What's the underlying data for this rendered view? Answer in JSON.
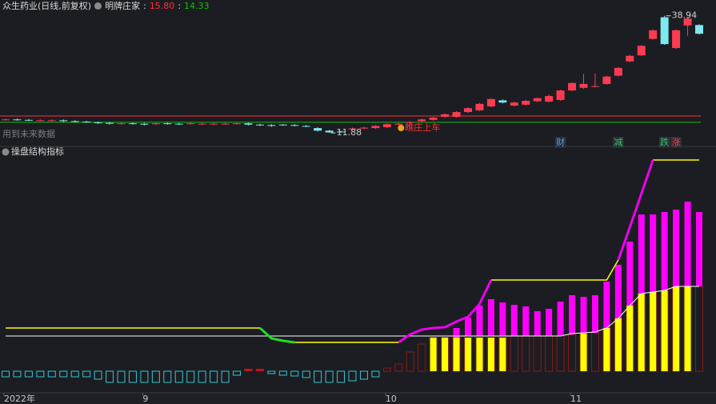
{
  "chart_data": [
    {
      "type": "candlestick",
      "title": "众生药业(日线,前复权)",
      "indicator": "明牌庄家",
      "separator": ":",
      "levels": [
        {
          "value": 15.8,
          "label": "15.80",
          "color": "#ff3030"
        },
        {
          "value": 14.33,
          "label": "14.33",
          "color": "#10c010"
        }
      ],
      "open": [
        14.9,
        15.0,
        14.9,
        14.8,
        14.7,
        14.8,
        14.6,
        14.5,
        14.3,
        14.2,
        14.0,
        14.1,
        14.0,
        13.9,
        14.1,
        14.0,
        14.0,
        13.9,
        13.9,
        14.0,
        14.0,
        14.1,
        13.8,
        13.7,
        13.8,
        13.7,
        13.5,
        13.0,
        12.4,
        12.2,
        12.7,
        12.9,
        13.0,
        13.2,
        13.8,
        14.2,
        14.6,
        14.9,
        15.6,
        15.6,
        16.7,
        17.1,
        18.0,
        19.4,
        18.2,
        18.4,
        19.2,
        19.1,
        19.5,
        21.7,
        22.3,
        22.6,
        23.2,
        25.1,
        28.4,
        29.8,
        33.6,
        38.6,
        31.5,
        36.7,
        36.8
      ],
      "high": [
        15.2,
        15.2,
        15.1,
        15.0,
        15.0,
        15.0,
        14.8,
        14.7,
        14.5,
        14.4,
        14.3,
        14.3,
        14.2,
        14.3,
        14.3,
        14.2,
        14.3,
        14.2,
        14.2,
        14.2,
        14.3,
        14.3,
        14.0,
        13.9,
        13.9,
        13.9,
        13.7,
        13.2,
        12.6,
        12.4,
        13.1,
        13.3,
        13.7,
        14.1,
        14.2,
        14.6,
        15.2,
        15.6,
        16.4,
        16.9,
        17.8,
        18.8,
        19.9,
        19.6,
        19.1,
        19.5,
        20.1,
        20.8,
        21.9,
        23.6,
        25.5,
        25.6,
        25.1,
        27.1,
        29.9,
        32.2,
        35.8,
        38.94,
        35.8,
        38.6,
        37.0
      ],
      "low": [
        14.7,
        14.7,
        14.6,
        14.6,
        14.5,
        14.4,
        14.3,
        14.2,
        14.0,
        13.8,
        13.8,
        13.8,
        13.6,
        13.7,
        13.8,
        13.7,
        13.8,
        13.7,
        13.7,
        13.8,
        13.8,
        13.6,
        13.5,
        13.3,
        13.5,
        13.4,
        13.2,
        12.2,
        11.88,
        11.9,
        12.5,
        12.7,
        12.8,
        13.0,
        13.6,
        14.0,
        14.4,
        14.7,
        15.4,
        15.4,
        16.5,
        16.9,
        17.8,
        18.7,
        18.0,
        18.2,
        19.0,
        18.9,
        19.3,
        21.5,
        22.1,
        22.4,
        23.0,
        24.9,
        28.2,
        29.6,
        33.4,
        32.2,
        31.3,
        34.3,
        34.6
      ],
      "close": [
        15.0,
        14.9,
        14.8,
        14.8,
        14.8,
        14.6,
        14.5,
        14.4,
        14.2,
        14.0,
        14.1,
        14.0,
        13.8,
        14.1,
        14.0,
        13.9,
        14.1,
        14.0,
        14.0,
        14.0,
        14.1,
        13.8,
        13.7,
        13.5,
        13.7,
        13.6,
        13.4,
        12.4,
        12.0,
        12.1,
        12.9,
        13.1,
        13.5,
        13.9,
        14.0,
        14.4,
        15.0,
        15.4,
        16.2,
        16.7,
        17.6,
        18.6,
        19.7,
        18.9,
        18.9,
        19.3,
        19.9,
        20.4,
        21.7,
        23.4,
        23.2,
        22.7,
        24.9,
        26.9,
        29.7,
        32.0,
        35.6,
        32.4,
        35.6,
        38.3,
        34.8
      ],
      "up_color": "#ff3b52",
      "down_color": "#7fe8f0",
      "ylim": [
        10.8,
        40.0
      ],
      "note": "用到未来数据",
      "annotation": {
        "index": 34,
        "text": "瞧庄上车"
      },
      "markers": [
        {
          "index": 48,
          "text": "财",
          "color": "#4aa3ff"
        },
        {
          "index": 53,
          "text": "减",
          "color": "#33cc66"
        },
        {
          "index": 57,
          "text": "跌",
          "color": "#33cc66"
        },
        {
          "index": 58,
          "text": "涨",
          "color": "#ff4444"
        }
      ]
    },
    {
      "type": "bar-line",
      "title": "操盘结构指标",
      "categories": [
        "2022年",
        null,
        null,
        null,
        null,
        null,
        null,
        null,
        null,
        null,
        null,
        null,
        "9",
        null,
        null,
        null,
        null,
        null,
        null,
        null,
        null,
        null,
        null,
        null,
        null,
        null,
        null,
        null,
        null,
        null,
        null,
        null,
        null,
        "10",
        null,
        null,
        null,
        null,
        null,
        null,
        null,
        null,
        null,
        null,
        null,
        null,
        null,
        null,
        null,
        "11",
        null,
        null,
        null,
        null,
        null,
        null,
        null,
        null,
        null,
        null,
        null
      ],
      "ylim": [
        -26,
        274
      ],
      "histogram": {
        "up_color": "#cc1111",
        "down_color": "#35c5d0",
        "values": [
          -7,
          -7,
          -7,
          -7,
          -7,
          -7,
          -7,
          -7,
          -10,
          -14,
          -14,
          -14,
          -14,
          -14,
          -14,
          -14,
          -14,
          -14,
          -14,
          -14,
          -5,
          3,
          3,
          -3,
          -5,
          -6,
          -8,
          -14,
          -14,
          -14,
          -12,
          -10,
          -7,
          null,
          null,
          null,
          null,
          null,
          null,
          null,
          null,
          null,
          null,
          null,
          null,
          null,
          null,
          null,
          null,
          null,
          null,
          null,
          null,
          null,
          null,
          null,
          null,
          null,
          null,
          null,
          null
        ]
      },
      "bars": [
        {
          "color": "#8b1a1a",
          "fill": false,
          "values": [
            null,
            null,
            null,
            null,
            null,
            null,
            null,
            null,
            null,
            null,
            null,
            null,
            null,
            null,
            null,
            null,
            null,
            null,
            null,
            null,
            null,
            null,
            null,
            null,
            null,
            null,
            null,
            null,
            null,
            null,
            null,
            null,
            null,
            4,
            9,
            24,
            34,
            42,
            42,
            42,
            44,
            44,
            44,
            44,
            44,
            44,
            44,
            44,
            44,
            46,
            47,
            48,
            54,
            66,
            82,
            97,
            99,
            101,
            106,
            106,
            106
          ]
        },
        {
          "color": "#ffff00",
          "fill": true,
          "values": [
            null,
            null,
            null,
            null,
            null,
            null,
            null,
            null,
            null,
            null,
            null,
            null,
            null,
            null,
            null,
            null,
            null,
            null,
            null,
            null,
            null,
            null,
            null,
            null,
            null,
            null,
            null,
            null,
            null,
            null,
            null,
            null,
            null,
            null,
            null,
            null,
            null,
            42,
            42,
            42,
            42,
            42,
            42,
            42,
            null,
            null,
            null,
            null,
            null,
            null,
            48,
            null,
            54,
            66,
            82,
            97,
            99,
            101,
            106,
            106,
            null
          ]
        },
        {
          "color": "#ff00ff",
          "fill": true,
          "stack_on": 0,
          "values": [
            null,
            null,
            null,
            null,
            null,
            null,
            null,
            null,
            null,
            null,
            null,
            null,
            null,
            null,
            null,
            null,
            null,
            null,
            null,
            null,
            null,
            null,
            null,
            null,
            null,
            null,
            null,
            null,
            null,
            null,
            null,
            null,
            null,
            null,
            null,
            null,
            null,
            null,
            null,
            12,
            23,
            38,
            46,
            42,
            39,
            37,
            31,
            34,
            43,
            49,
            46,
            47,
            58,
            67,
            80,
            99,
            97,
            98,
            96,
            106,
            93
          ]
        }
      ],
      "lines": [
        {
          "color": "#ffffff",
          "width": 1,
          "values": [
            44,
            44,
            44,
            44,
            44,
            44,
            44,
            44,
            44,
            44,
            44,
            44,
            44,
            44,
            44,
            44,
            44,
            44,
            44,
            44,
            44,
            44,
            44,
            44,
            44,
            44,
            44,
            44,
            44,
            44,
            44,
            44,
            44,
            44,
            44,
            44,
            44,
            44,
            44,
            44,
            44,
            44,
            44,
            44,
            44,
            44,
            44,
            44,
            44,
            47,
            48,
            49,
            54,
            66,
            82,
            97,
            99,
            101,
            106,
            106,
            106
          ]
        },
        {
          "color": "#ffff00",
          "width": 1.5,
          "values": [
            54,
            54,
            54,
            54,
            54,
            54,
            54,
            54,
            54,
            54,
            54,
            54,
            54,
            54,
            54,
            54,
            54,
            54,
            54,
            54,
            54,
            54,
            54,
            null,
            null,
            36,
            36,
            36,
            36,
            36,
            36,
            36,
            36,
            36,
            36,
            null,
            null,
            null,
            null,
            null,
            null,
            null,
            114,
            114,
            114,
            114,
            114,
            114,
            114,
            114,
            114,
            114,
            114,
            139,
            null,
            null,
            264,
            264,
            264,
            264,
            264
          ]
        },
        {
          "color": "#22dd22",
          "width": 3,
          "values": [
            null,
            null,
            null,
            null,
            null,
            null,
            null,
            null,
            null,
            null,
            null,
            null,
            null,
            null,
            null,
            null,
            null,
            null,
            null,
            null,
            null,
            null,
            54,
            41,
            38,
            36,
            null,
            null,
            null,
            null,
            null,
            null,
            null,
            null,
            null,
            null,
            null,
            null,
            null,
            null,
            null,
            null,
            null,
            null,
            null,
            null,
            null,
            null,
            null,
            null,
            null,
            null,
            null,
            null,
            null,
            null,
            null,
            null,
            null,
            null,
            null
          ]
        },
        {
          "color": "#ee00ee",
          "width": 3,
          "values": [
            null,
            null,
            null,
            null,
            null,
            null,
            null,
            null,
            null,
            null,
            null,
            null,
            null,
            null,
            null,
            null,
            null,
            null,
            null,
            null,
            null,
            null,
            null,
            null,
            null,
            null,
            null,
            null,
            null,
            null,
            null,
            null,
            null,
            null,
            36,
            46,
            52,
            54,
            55,
            62,
            68,
            84,
            114,
            null,
            null,
            null,
            null,
            null,
            null,
            null,
            null,
            null,
            null,
            139,
            180,
            222,
            264,
            null,
            null,
            null,
            null
          ]
        }
      ]
    }
  ]
}
